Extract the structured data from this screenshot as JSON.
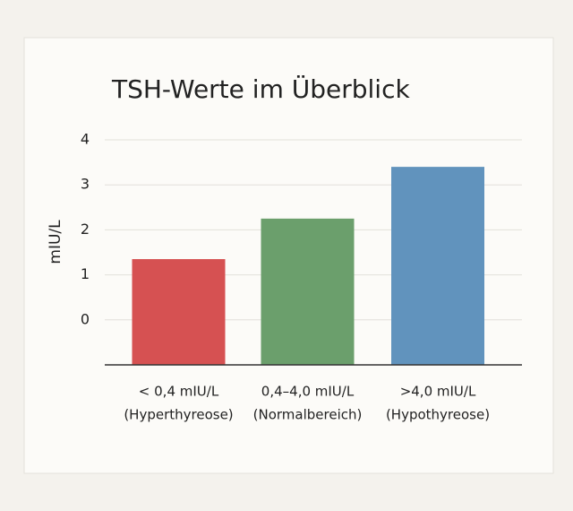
{
  "chart_data": {
    "type": "bar",
    "title": "TSH-Werte im Überblick",
    "y_label": "mIU/L",
    "categories": [
      [
        "< 0,4 mIU/L",
        "(Hyperthyreose)"
      ],
      [
        "0,4–4,0 mIU/L",
        "(Normalbereich)"
      ],
      [
        ">4,0 mIU/L",
        "(Hypothyreose)"
      ]
    ],
    "values": [
      1.35,
      2.25,
      3.4
    ],
    "colors": [
      "#d65152",
      "#6b9f6c",
      "#6193bd"
    ],
    "ylim": [
      -1,
      4
    ],
    "yticks": [
      0,
      1,
      2,
      3,
      4
    ],
    "grid": true
  }
}
